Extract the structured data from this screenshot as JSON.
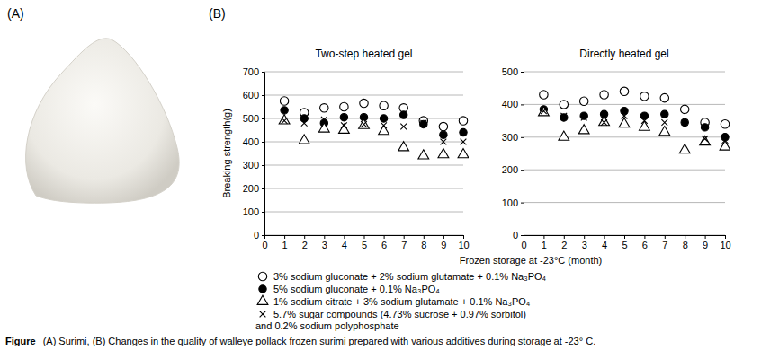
{
  "panel_labels": [
    "(A)",
    "(B)"
  ],
  "caption_label": "Figure",
  "caption": "(A) Surimi, (B) Changes in the quality of walleye pollack frozen surimi prepared with various additives during storage at -23° C.",
  "chart_data": [
    {
      "type": "scatter",
      "title": "Two-step heated gel",
      "y_label": "Breaking strength(g)",
      "x": [
        1,
        2,
        3,
        4,
        5,
        6,
        7,
        8,
        9,
        10
      ],
      "xlim": [
        0,
        10
      ],
      "xticks": [
        0,
        1,
        2,
        3,
        4,
        5,
        6,
        7,
        8,
        9,
        10
      ],
      "ylim": [
        0,
        700
      ],
      "yticks": [
        0,
        100,
        200,
        300,
        400,
        500,
        600,
        700
      ],
      "grid": true,
      "series": [
        {
          "name": "3% sodium gluconate + 2% sodium glutamate + 0.1% Na₃PO₄",
          "color": "#000000",
          "marker": "circle-open",
          "values": [
            575,
            525,
            545,
            550,
            565,
            555,
            545,
            490,
            465,
            490
          ]
        },
        {
          "name": "5% sodium gluconate + 0.1% Na₃PO₄",
          "color": "#000000",
          "marker": "circle-filled",
          "values": [
            535,
            500,
            480,
            505,
            505,
            500,
            515,
            475,
            430,
            440
          ]
        },
        {
          "name": "1% sodium citrate + 3% sodium glutamate + 0.1% Na₃PO₄",
          "color": "#000000",
          "marker": "triangle-open",
          "values": [
            490,
            405,
            455,
            450,
            470,
            445,
            375,
            340,
            345,
            345
          ]
        },
        {
          "name": "5.7% sugar compounds (4.73% sucrose + 0.97% sorbitol)\nand 0.2% sodium polyphosphate",
          "color": "#000000",
          "marker": "x",
          "values": [
            490,
            480,
            495,
            470,
            475,
            470,
            465,
            480,
            400,
            400
          ]
        }
      ]
    },
    {
      "type": "scatter",
      "title": "Directly heated gel",
      "x_label": "Frozen storage at -23°C (month)",
      "x": [
        1,
        2,
        3,
        4,
        5,
        6,
        7,
        8,
        9,
        10
      ],
      "xlim": [
        0,
        10
      ],
      "xticks": [
        0,
        1,
        2,
        3,
        4,
        5,
        6,
        7,
        8,
        9,
        10
      ],
      "ylim": [
        0,
        500
      ],
      "yticks": [
        0,
        100,
        200,
        300,
        400,
        500
      ],
      "grid": true,
      "series": [
        {
          "name": "3% sodium gluconate + 2% sodium glutamate + 0.1% Na₃PO₄",
          "color": "#000000",
          "marker": "circle-open",
          "values": [
            430,
            400,
            410,
            430,
            440,
            425,
            420,
            385,
            345,
            340
          ]
        },
        {
          "name": "5% sodium gluconate + 0.1% Na₃PO₄",
          "color": "#000000",
          "marker": "circle-filled",
          "values": [
            385,
            360,
            365,
            370,
            380,
            365,
            370,
            345,
            330,
            300
          ]
        },
        {
          "name": "1% sodium citrate + 3% sodium glutamate + 0.1% Na₃PO₄",
          "color": "#000000",
          "marker": "triangle-open",
          "values": [
            375,
            300,
            320,
            345,
            340,
            330,
            315,
            260,
            285,
            270
          ]
        },
        {
          "name": "5.7% sugar compounds (4.73% sucrose + 0.97% sorbitol)\nand 0.2% sodium polyphosphate",
          "color": "#000000",
          "marker": "x",
          "values": [
            380,
            365,
            360,
            345,
            365,
            350,
            345,
            345,
            295,
            290
          ]
        }
      ]
    }
  ]
}
